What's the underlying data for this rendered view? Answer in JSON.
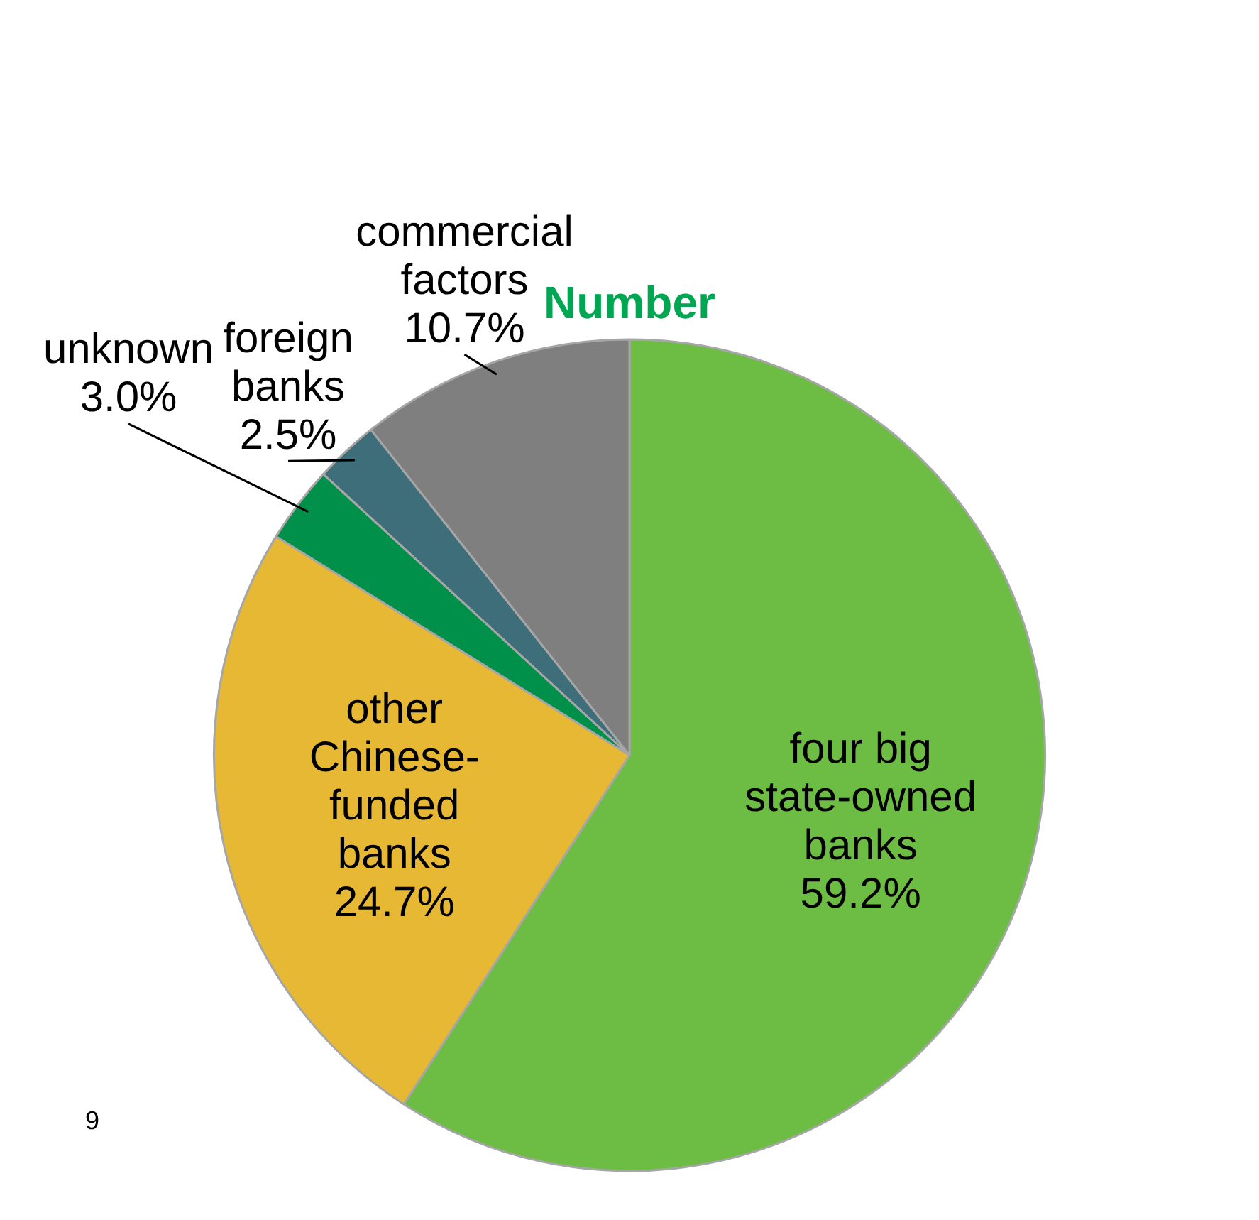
{
  "chart_data": {
    "type": "pie",
    "title": "Number",
    "categories": [
      "four big state-owned banks",
      "other Chinese-funded banks",
      "unknown",
      "foreign banks",
      "commercial factors"
    ],
    "values": [
      59.2,
      24.7,
      3.0,
      2.5,
      10.7
    ],
    "value_labels": [
      "59.2%",
      "24.7%",
      "3.0%",
      "2.5%",
      "10.7%"
    ],
    "colors": [
      "#6dbd45",
      "#e6b833",
      "#00904a",
      "#3d6e7a",
      "#7f7f7f"
    ],
    "legend": false,
    "annotations": [
      "9"
    ]
  }
}
